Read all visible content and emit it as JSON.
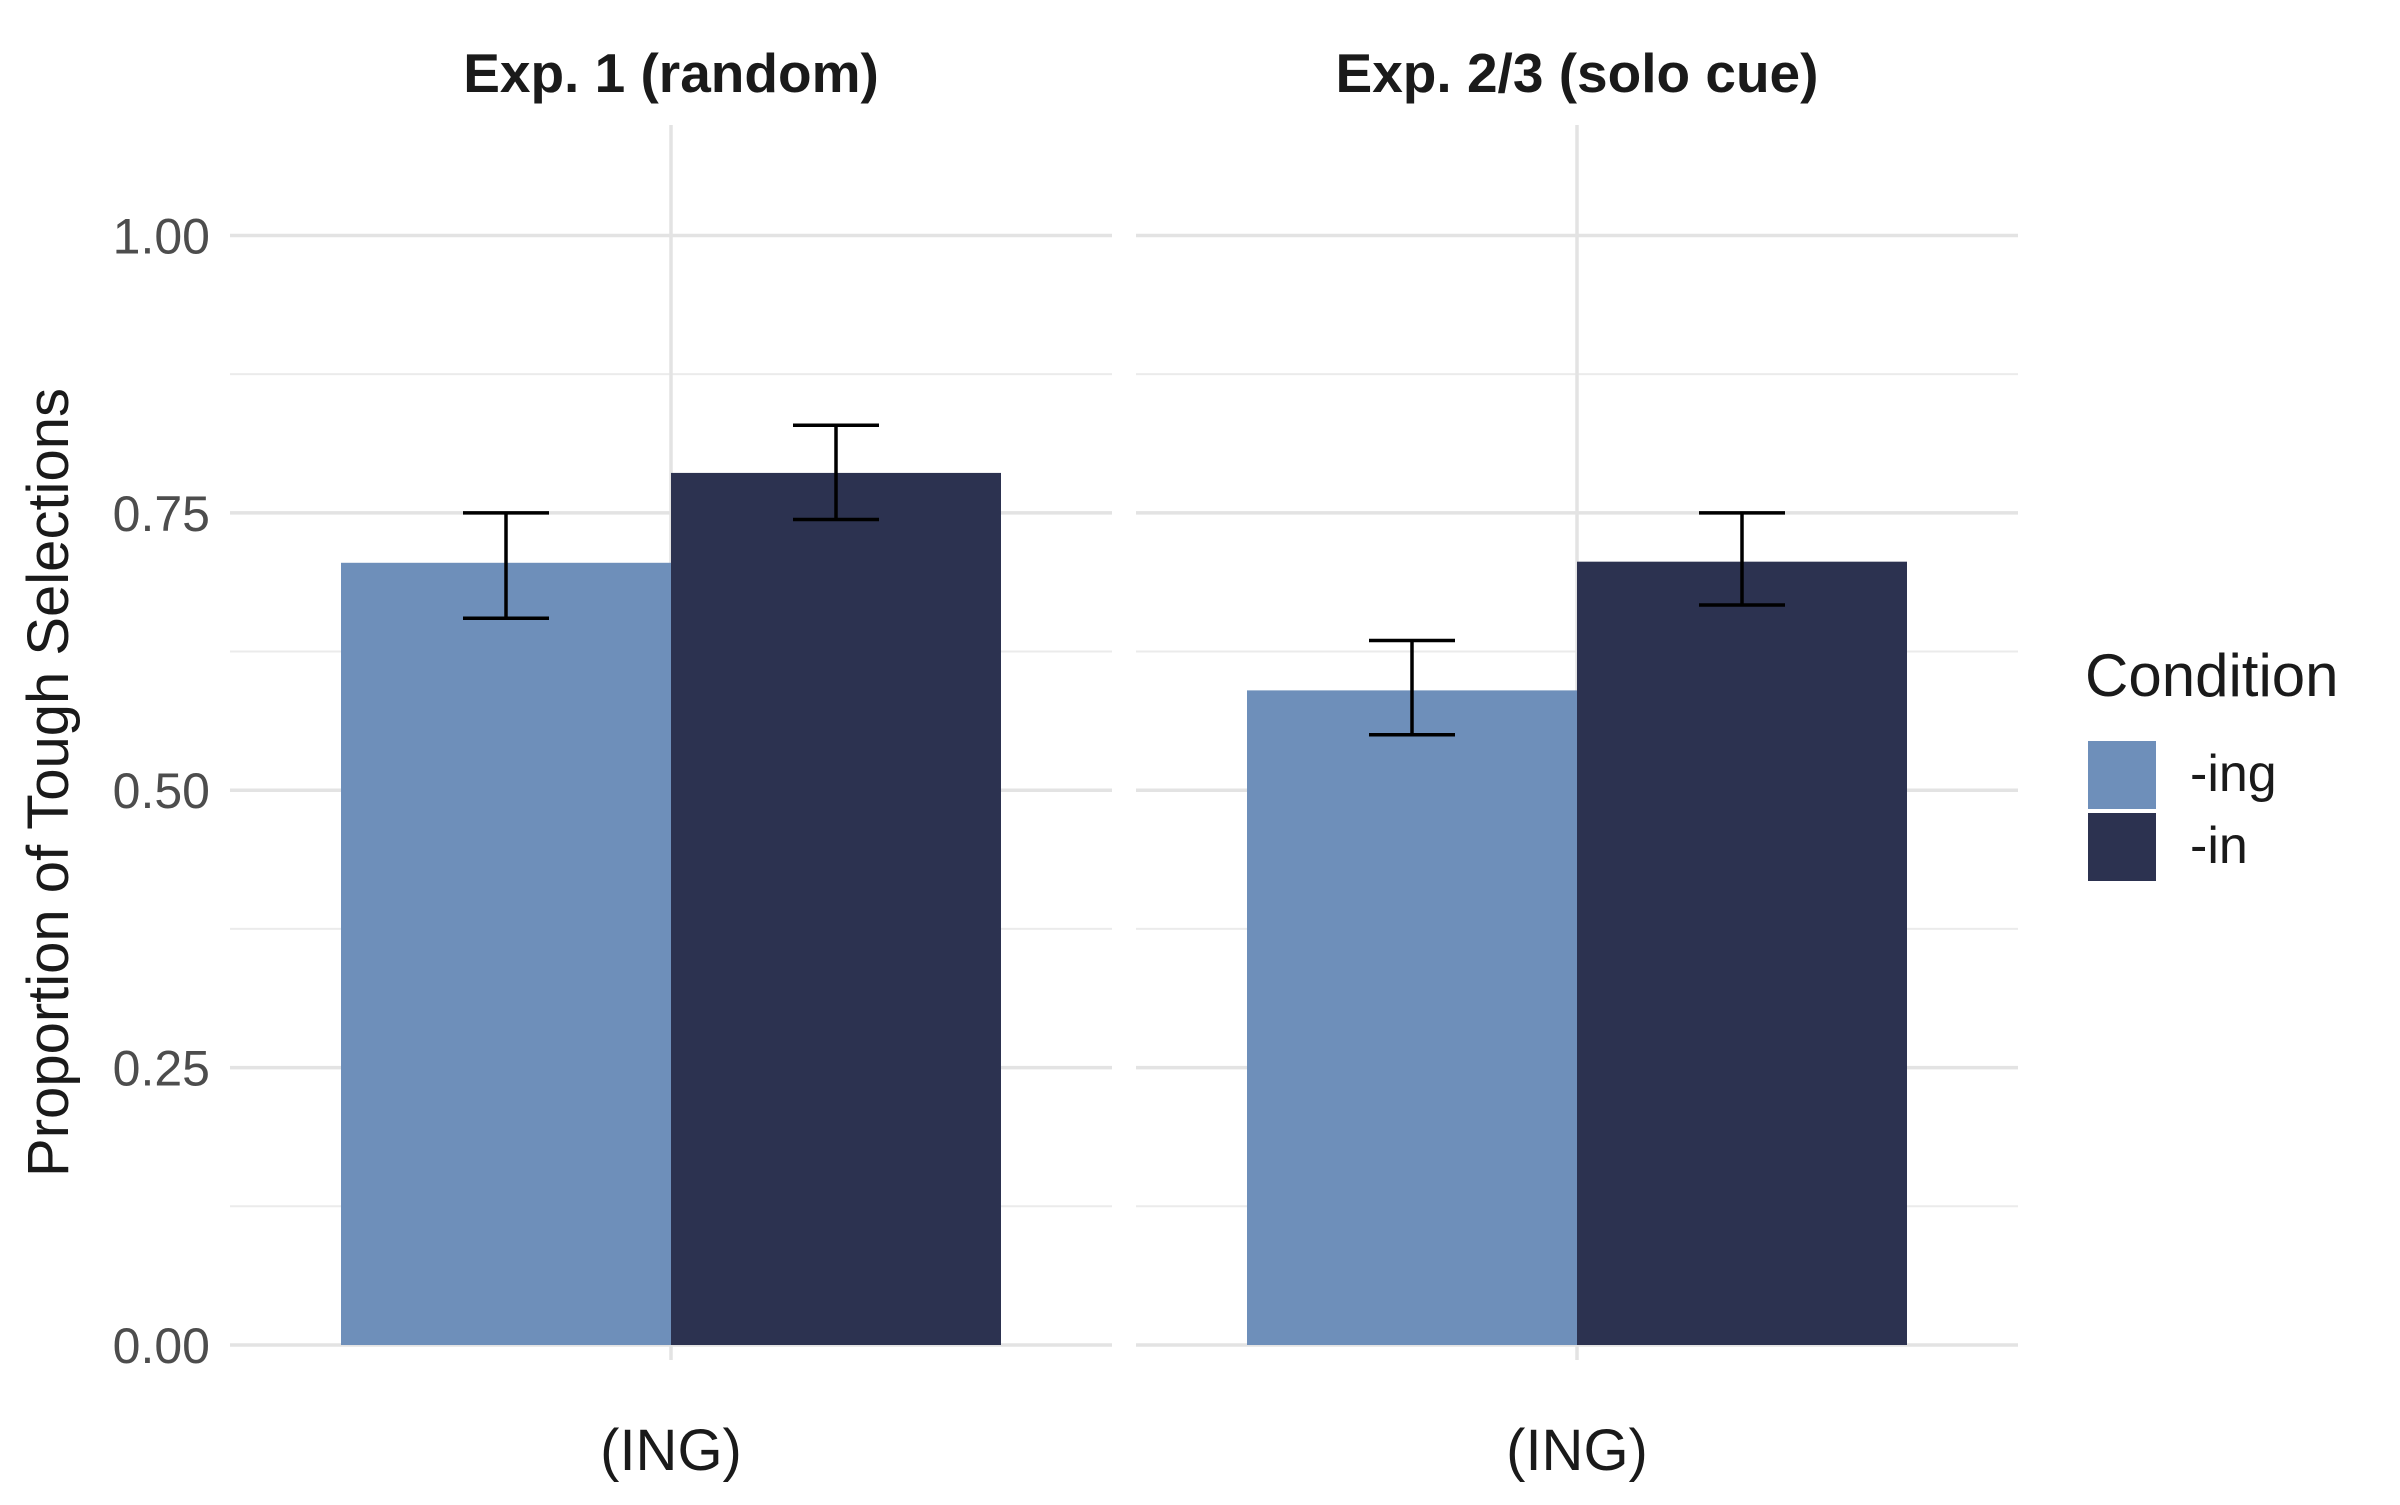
{
  "chart_data": {
    "type": "bar",
    "title": "",
    "xlabel": "",
    "ylabel": "Proportion of Tough Selections",
    "ylim": [
      0,
      1.05
    ],
    "y_ticks": [
      0,
      0.25,
      0.5,
      0.75,
      1.0
    ],
    "y_tick_labels": [
      "0.00",
      "0.25",
      "0.50",
      "0.75",
      "1.00"
    ],
    "grid": true,
    "legend": {
      "title": "Condition",
      "position": "right",
      "entries": [
        {
          "label": "-ing",
          "color": "#6e8fba"
        },
        {
          "label": "-in",
          "color": "#2c3250"
        }
      ]
    },
    "facets": [
      {
        "title": "Exp. 1 (random)",
        "categories": [
          "(ING)"
        ],
        "series": [
          {
            "name": "-ing",
            "values": [
              0.705
            ],
            "error": [
              [
                0.655,
                0.75
              ]
            ]
          },
          {
            "name": "-in",
            "values": [
              0.786
            ],
            "error": [
              [
                0.744,
                0.829
              ]
            ]
          }
        ]
      },
      {
        "title": "Exp. 2/3 (solo cue)",
        "categories": [
          "(ING)"
        ],
        "series": [
          {
            "name": "-ing",
            "values": [
              0.59
            ],
            "error": [
              [
                0.55,
                0.635
              ]
            ]
          },
          {
            "name": "-in",
            "values": [
              0.706
            ],
            "error": [
              [
                0.667,
                0.75
              ]
            ]
          }
        ]
      }
    ]
  }
}
